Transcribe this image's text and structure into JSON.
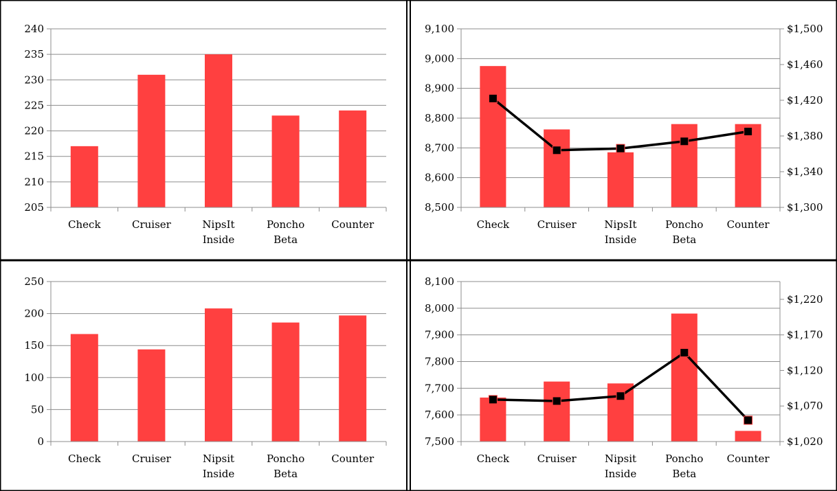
{
  "colors": {
    "bar": "#ff4040",
    "line": "#000000",
    "marker": "#000000",
    "marker_outline": "#ff4040",
    "grid": "#8c8c8c",
    "border": "#000000"
  },
  "chart_data": [
    {
      "type": "bar",
      "categories": [
        [
          "Check"
        ],
        [
          "Cruiser"
        ],
        [
          "NipsIt",
          "Inside"
        ],
        [
          "Poncho",
          "Beta"
        ],
        [
          "Counter"
        ]
      ],
      "values": [
        217,
        231,
        235,
        223,
        224
      ],
      "ylim": [
        205,
        240
      ],
      "ytick_step": 5,
      "yticks": [
        "205",
        "210",
        "215",
        "220",
        "225",
        "230",
        "235",
        "240"
      ],
      "grid": true
    },
    {
      "type": "bar",
      "categories": [
        [
          "Check"
        ],
        [
          "Cruiser"
        ],
        [
          "NipsIt",
          "Inside"
        ],
        [
          "Poncho",
          "Beta"
        ],
        [
          "Counter"
        ]
      ],
      "values": [
        8975,
        8762,
        8685,
        8780,
        8780
      ],
      "ylim": [
        8500,
        9100
      ],
      "ytick_step": 100,
      "yticks": [
        "8,500",
        "8,600",
        "8,700",
        "8,800",
        "8,900",
        "9,000",
        "9,100"
      ],
      "grid": true,
      "secondary": {
        "type": "line",
        "values": [
          1422,
          1364,
          1366,
          1374,
          1385
        ],
        "ylim": [
          1300,
          1500
        ],
        "ytick_step": 40,
        "yticks": [
          "$1,300",
          "$1,340",
          "$1,380",
          "$1,420",
          "$1,460",
          "$1,500"
        ]
      }
    },
    {
      "type": "bar",
      "categories": [
        [
          "Check"
        ],
        [
          "Cruiser"
        ],
        [
          "Nipsit",
          "Inside"
        ],
        [
          "Poncho",
          "Beta"
        ],
        [
          "Counter"
        ]
      ],
      "values": [
        168,
        144,
        208,
        186,
        197
      ],
      "ylim": [
        0,
        250
      ],
      "ytick_step": 50,
      "yticks": [
        "0",
        "50",
        "100",
        "150",
        "200",
        "250"
      ],
      "grid": true
    },
    {
      "type": "bar",
      "categories": [
        [
          "Check"
        ],
        [
          "Cruiser"
        ],
        [
          "Nipsit",
          "Inside"
        ],
        [
          "Poncho",
          "Beta"
        ],
        [
          "Counter"
        ]
      ],
      "values": [
        7665,
        7725,
        7718,
        7980,
        7540
      ],
      "ylim": [
        7500,
        8100
      ],
      "ytick_step": 100,
      "yticks": [
        "7,500",
        "7,600",
        "7,700",
        "7,800",
        "7,900",
        "8,000",
        "8,100"
      ],
      "grid": true,
      "secondary": {
        "type": "line",
        "values": [
          1079,
          1077,
          1084,
          1145,
          1050
        ],
        "ylim": [
          1020,
          1245
        ],
        "ytick_step": 50,
        "yticks": [
          "$1,020",
          "$1,070",
          "$1,120",
          "$1,170",
          "$1,220"
        ]
      }
    }
  ]
}
